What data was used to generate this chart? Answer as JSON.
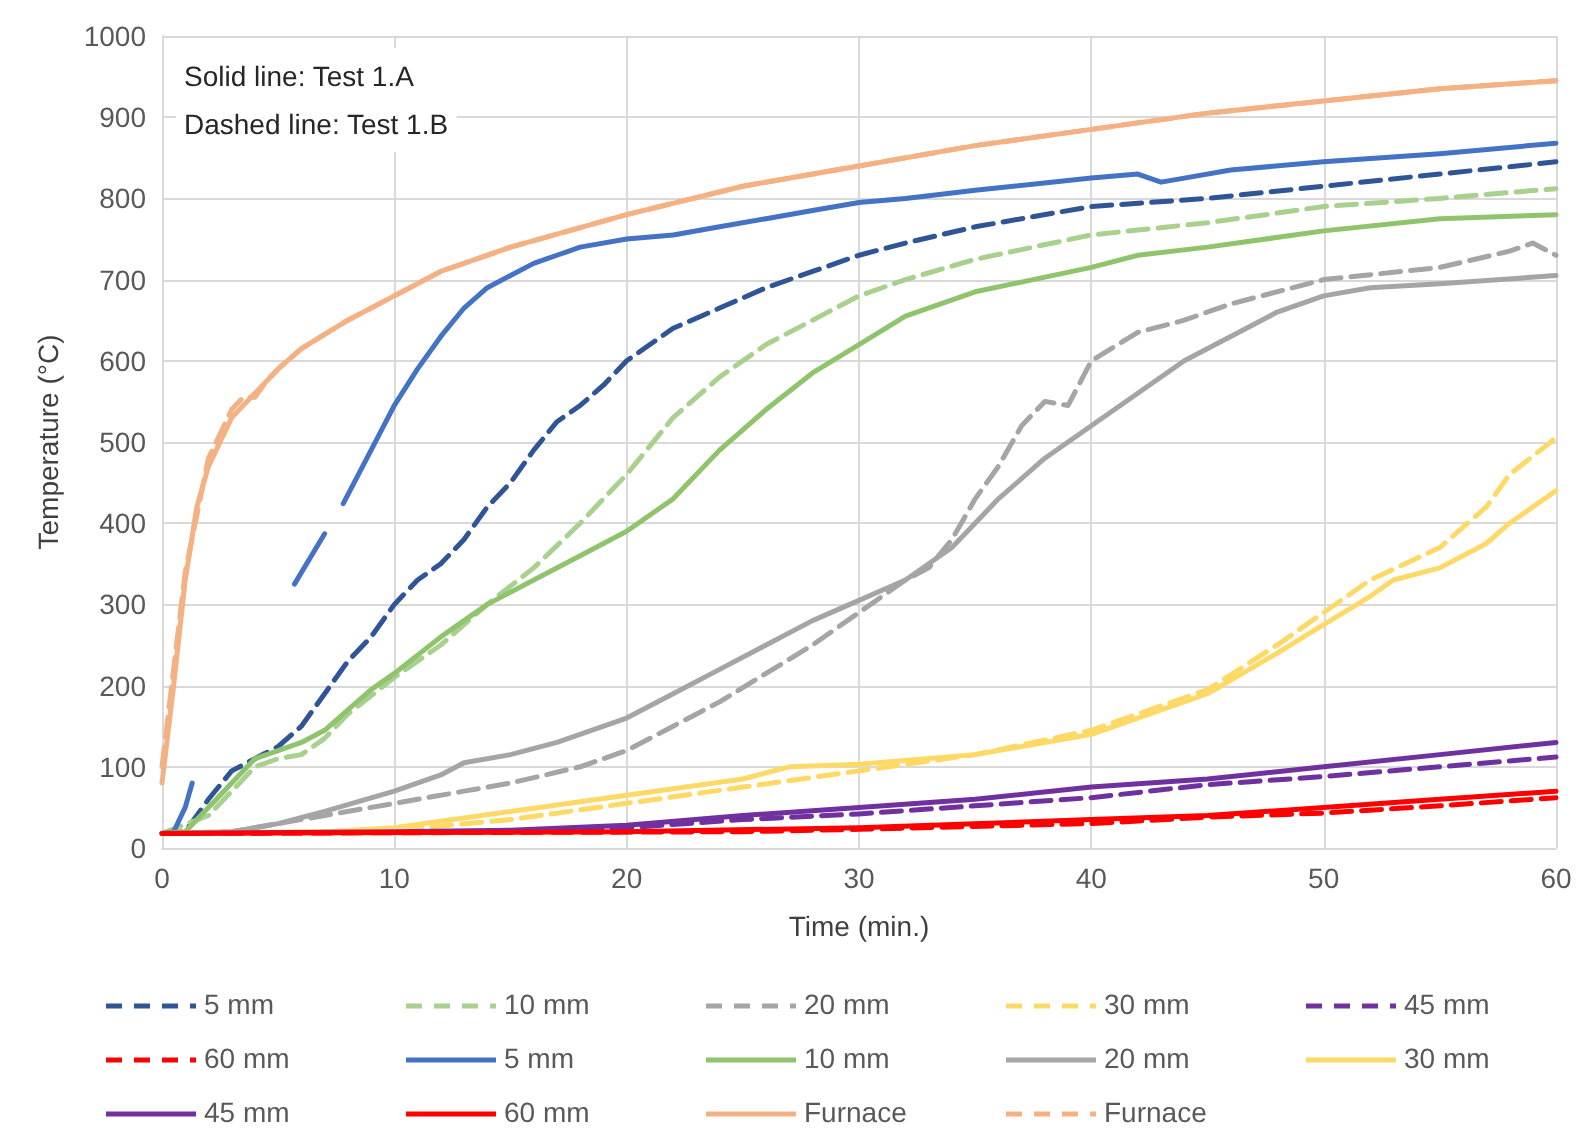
{
  "chart_data": {
    "type": "line",
    "xlabel": "Time (min.)",
    "ylabel": "Temperature (°C)",
    "annotations": [
      "Solid line: Test 1.A",
      "Dashed line: Test 1.B"
    ],
    "xlim": [
      0,
      60
    ],
    "xticks": [
      0,
      10,
      20,
      30,
      40,
      50,
      60
    ],
    "ylim": [
      0,
      1000
    ],
    "yticks": [
      0,
      100,
      200,
      300,
      400,
      500,
      600,
      700,
      800,
      900,
      1000
    ],
    "grid": true,
    "legend": "bottom",
    "marker": "none",
    "series": [
      {
        "name": "5 mm",
        "color": "#2f5597",
        "line_style": "dashed",
        "x": [
          0,
          1,
          2,
          3,
          4,
          5,
          6,
          7,
          8,
          9,
          10,
          11,
          12,
          13,
          14,
          15,
          16,
          17,
          18,
          19,
          20,
          22,
          24,
          26,
          28,
          30,
          32,
          35,
          40,
          45,
          50,
          55,
          60
        ],
        "values": [
          18,
          20,
          60,
          95,
          110,
          125,
          150,
          190,
          230,
          260,
          300,
          330,
          350,
          380,
          420,
          450,
          490,
          525,
          545,
          570,
          600,
          640,
          665,
          690,
          710,
          730,
          745,
          765,
          790,
          800,
          815,
          830,
          845
        ]
      },
      {
        "name": "10 mm",
        "color": "#a9d18e",
        "line_style": "dashed",
        "x": [
          0,
          2,
          3,
          4,
          5,
          6,
          7,
          8,
          10,
          12,
          14,
          16,
          18,
          20,
          22,
          24,
          26,
          28,
          30,
          32,
          35,
          40,
          45,
          50,
          55,
          60
        ],
        "values": [
          18,
          40,
          70,
          100,
          110,
          115,
          135,
          165,
          210,
          250,
          300,
          345,
          400,
          460,
          530,
          580,
          620,
          650,
          680,
          700,
          725,
          755,
          770,
          790,
          800,
          812
        ]
      },
      {
        "name": "20 mm",
        "color": "#a5a5a5",
        "line_style": "dashed",
        "x": [
          0,
          3,
          5,
          7,
          10,
          13,
          15,
          18,
          20,
          22,
          24,
          26,
          28,
          30,
          32,
          33,
          34,
          35,
          36,
          37,
          38,
          39,
          40,
          42,
          44,
          46,
          50,
          55,
          58,
          59,
          60
        ],
        "values": [
          18,
          20,
          30,
          40,
          55,
          70,
          80,
          100,
          120,
          150,
          180,
          215,
          250,
          290,
          330,
          345,
          380,
          430,
          470,
          520,
          550,
          545,
          600,
          635,
          650,
          670,
          700,
          715,
          735,
          745,
          730
        ]
      },
      {
        "name": "30 mm",
        "color": "#ffd966",
        "line_style": "dashed",
        "x": [
          0,
          8,
          10,
          15,
          20,
          25,
          30,
          35,
          40,
          45,
          48,
          50,
          52,
          55,
          57,
          58,
          60
        ],
        "values": [
          18,
          20,
          22,
          35,
          55,
          75,
          95,
          115,
          145,
          195,
          250,
          290,
          330,
          370,
          420,
          460,
          505
        ]
      },
      {
        "name": "45 mm",
        "color": "#7030a0",
        "line_style": "dashed",
        "x": [
          0,
          15,
          20,
          25,
          30,
          35,
          40,
          45,
          50,
          55,
          60
        ],
        "values": [
          18,
          20,
          25,
          35,
          42,
          52,
          62,
          78,
          88,
          100,
          112
        ]
      },
      {
        "name": "60 mm",
        "color": "#ff0000",
        "line_style": "dashed",
        "x": [
          0,
          25,
          30,
          40,
          45,
          50,
          55,
          60
        ],
        "values": [
          18,
          20,
          23,
          30,
          38,
          43,
          52,
          62
        ]
      },
      {
        "name": "5 mm",
        "color": "#4472c4",
        "line_style": "solid",
        "x": [
          0,
          0.5,
          1,
          1.3,
          2,
          5.7,
          7,
          7.4,
          7.8,
          9,
          10,
          11,
          12,
          13,
          14,
          15,
          16,
          17,
          18,
          20,
          22,
          24,
          26,
          28,
          30,
          32,
          35,
          40,
          42,
          43,
          44,
          46,
          50,
          55,
          60
        ],
        "values": [
          18,
          20,
          50,
          80,
          null,
          325,
          387,
          null,
          424,
          490,
          545,
          590,
          630,
          665,
          690,
          705,
          720,
          730,
          740,
          750,
          755,
          765,
          775,
          785,
          795,
          800,
          810,
          825,
          830,
          820,
          825,
          835,
          845,
          855,
          868
        ]
      },
      {
        "name": "10 mm",
        "color": "#8fc46c",
        "line_style": "solid",
        "x": [
          0,
          1,
          2,
          3,
          4,
          5,
          6,
          7,
          8,
          9,
          10,
          12,
          14,
          16,
          18,
          20,
          22,
          24,
          26,
          28,
          30,
          32,
          35,
          40,
          42,
          45,
          50,
          55,
          60
        ],
        "values": [
          18,
          20,
          50,
          80,
          110,
          120,
          130,
          145,
          170,
          195,
          215,
          260,
          300,
          330,
          360,
          390,
          430,
          490,
          540,
          585,
          620,
          655,
          685,
          715,
          730,
          740,
          760,
          775,
          780
        ]
      },
      {
        "name": "20 mm",
        "color": "#a5a5a5",
        "line_style": "solid",
        "x": [
          0,
          3,
          5,
          7,
          10,
          12,
          13,
          15,
          17,
          20,
          22,
          24,
          26,
          28,
          30,
          32,
          34,
          36,
          38,
          40,
          42,
          44,
          46,
          48,
          50,
          52,
          55,
          60
        ],
        "values": [
          18,
          20,
          30,
          45,
          70,
          90,
          105,
          115,
          130,
          160,
          190,
          220,
          250,
          280,
          305,
          330,
          370,
          430,
          480,
          520,
          560,
          600,
          630,
          660,
          680,
          690,
          695,
          705
        ]
      },
      {
        "name": "30 mm",
        "color": "#ffd966",
        "line_style": "solid",
        "x": [
          0,
          7,
          10,
          15,
          20,
          25,
          27,
          30,
          35,
          38,
          40,
          42,
          45,
          48,
          50,
          52,
          53,
          55,
          57,
          58,
          60
        ],
        "values": [
          18,
          20,
          25,
          45,
          65,
          85,
          100,
          103,
          115,
          130,
          140,
          160,
          190,
          240,
          275,
          310,
          330,
          345,
          375,
          400,
          440
        ]
      },
      {
        "name": "45 mm",
        "color": "#7030a0",
        "line_style": "solid",
        "x": [
          0,
          10,
          15,
          20,
          25,
          30,
          35,
          40,
          45,
          50,
          55,
          60
        ],
        "values": [
          18,
          20,
          22,
          28,
          40,
          50,
          60,
          75,
          85,
          100,
          115,
          130
        ]
      },
      {
        "name": "60 mm",
        "color": "#ff0000",
        "line_style": "solid",
        "x": [
          0,
          20,
          30,
          40,
          45,
          50,
          55,
          60
        ],
        "values": [
          18,
          20,
          25,
          35,
          40,
          50,
          60,
          70
        ]
      },
      {
        "name": "Furnace",
        "color": "#f4b183",
        "line_style": "solid",
        "x": [
          0,
          0.5,
          1,
          1.5,
          2,
          3,
          4,
          5,
          6,
          8,
          10,
          12,
          15,
          20,
          25,
          30,
          35,
          40,
          45,
          50,
          55,
          60
        ],
        "values": [
          80,
          200,
          330,
          420,
          470,
          530,
          560,
          590,
          615,
          650,
          680,
          710,
          740,
          780,
          815,
          840,
          865,
          885,
          905,
          920,
          935,
          945
        ]
      },
      {
        "name": "Furnace",
        "color": "#f4b183",
        "line_style": "dashed",
        "x": [
          0,
          0.5,
          1,
          2,
          3,
          3.5,
          4,
          4.5,
          5,
          6,
          8,
          10,
          12,
          15,
          20,
          25,
          30,
          35,
          40,
          45,
          50,
          55,
          60
        ],
        "values": [
          100,
          220,
          340,
          480,
          540,
          555,
          555,
          575,
          590,
          615,
          650,
          680,
          710,
          740,
          780,
          815,
          840,
          865,
          885,
          905,
          920,
          935,
          945
        ]
      }
    ]
  }
}
